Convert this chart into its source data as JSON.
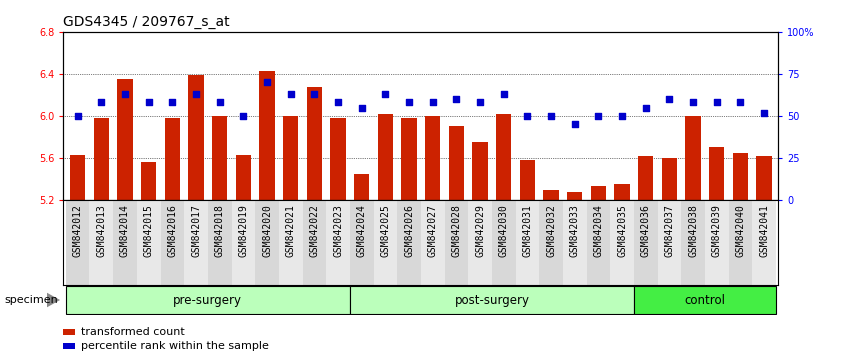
{
  "title": "GDS4345 / 209767_s_at",
  "samples": [
    "GSM842012",
    "GSM842013",
    "GSM842014",
    "GSM842015",
    "GSM842016",
    "GSM842017",
    "GSM842018",
    "GSM842019",
    "GSM842020",
    "GSM842021",
    "GSM842022",
    "GSM842023",
    "GSM842024",
    "GSM842025",
    "GSM842026",
    "GSM842027",
    "GSM842028",
    "GSM842029",
    "GSM842030",
    "GSM842031",
    "GSM842032",
    "GSM842033",
    "GSM842034",
    "GSM842035",
    "GSM842036",
    "GSM842037",
    "GSM842038",
    "GSM842039",
    "GSM842040",
    "GSM842041"
  ],
  "bar_values": [
    5.63,
    5.98,
    6.35,
    5.56,
    5.98,
    6.39,
    6.0,
    5.63,
    6.43,
    6.0,
    6.28,
    5.98,
    5.45,
    6.02,
    5.98,
    6.0,
    5.9,
    5.75,
    6.02,
    5.58,
    5.3,
    5.28,
    5.33,
    5.35,
    5.62,
    5.6,
    6.0,
    5.7,
    5.65,
    5.62
  ],
  "dot_values_pct": [
    50,
    58,
    63,
    58,
    58,
    63,
    58,
    50,
    70,
    63,
    63,
    58,
    55,
    63,
    58,
    58,
    60,
    58,
    63,
    50,
    50,
    45,
    50,
    50,
    55,
    60,
    58,
    58,
    58,
    52
  ],
  "groups": [
    {
      "label": "pre-surgery",
      "start": 0,
      "end": 12
    },
    {
      "label": "post-surgery",
      "start": 12,
      "end": 24
    },
    {
      "label": "control",
      "start": 24,
      "end": 30
    }
  ],
  "group_colors": [
    "#bbffbb",
    "#bbffbb",
    "#44ee44"
  ],
  "ylim_left": [
    5.2,
    6.8
  ],
  "ylim_right": [
    0,
    100
  ],
  "yticks_left": [
    5.2,
    5.6,
    6.0,
    6.4,
    6.8
  ],
  "yticks_right": [
    0,
    25,
    50,
    75,
    100
  ],
  "ytick_labels_right": [
    "0",
    "25",
    "50",
    "75",
    "100%"
  ],
  "bar_color": "#cc2200",
  "dot_color": "#0000cc",
  "bar_bottom": 5.2,
  "legend_bar_label": "transformed count",
  "legend_dot_label": "percentile rank within the sample",
  "specimen_label": "specimen",
  "title_fontsize": 10,
  "tick_fontsize": 7,
  "group_fontsize": 8.5
}
